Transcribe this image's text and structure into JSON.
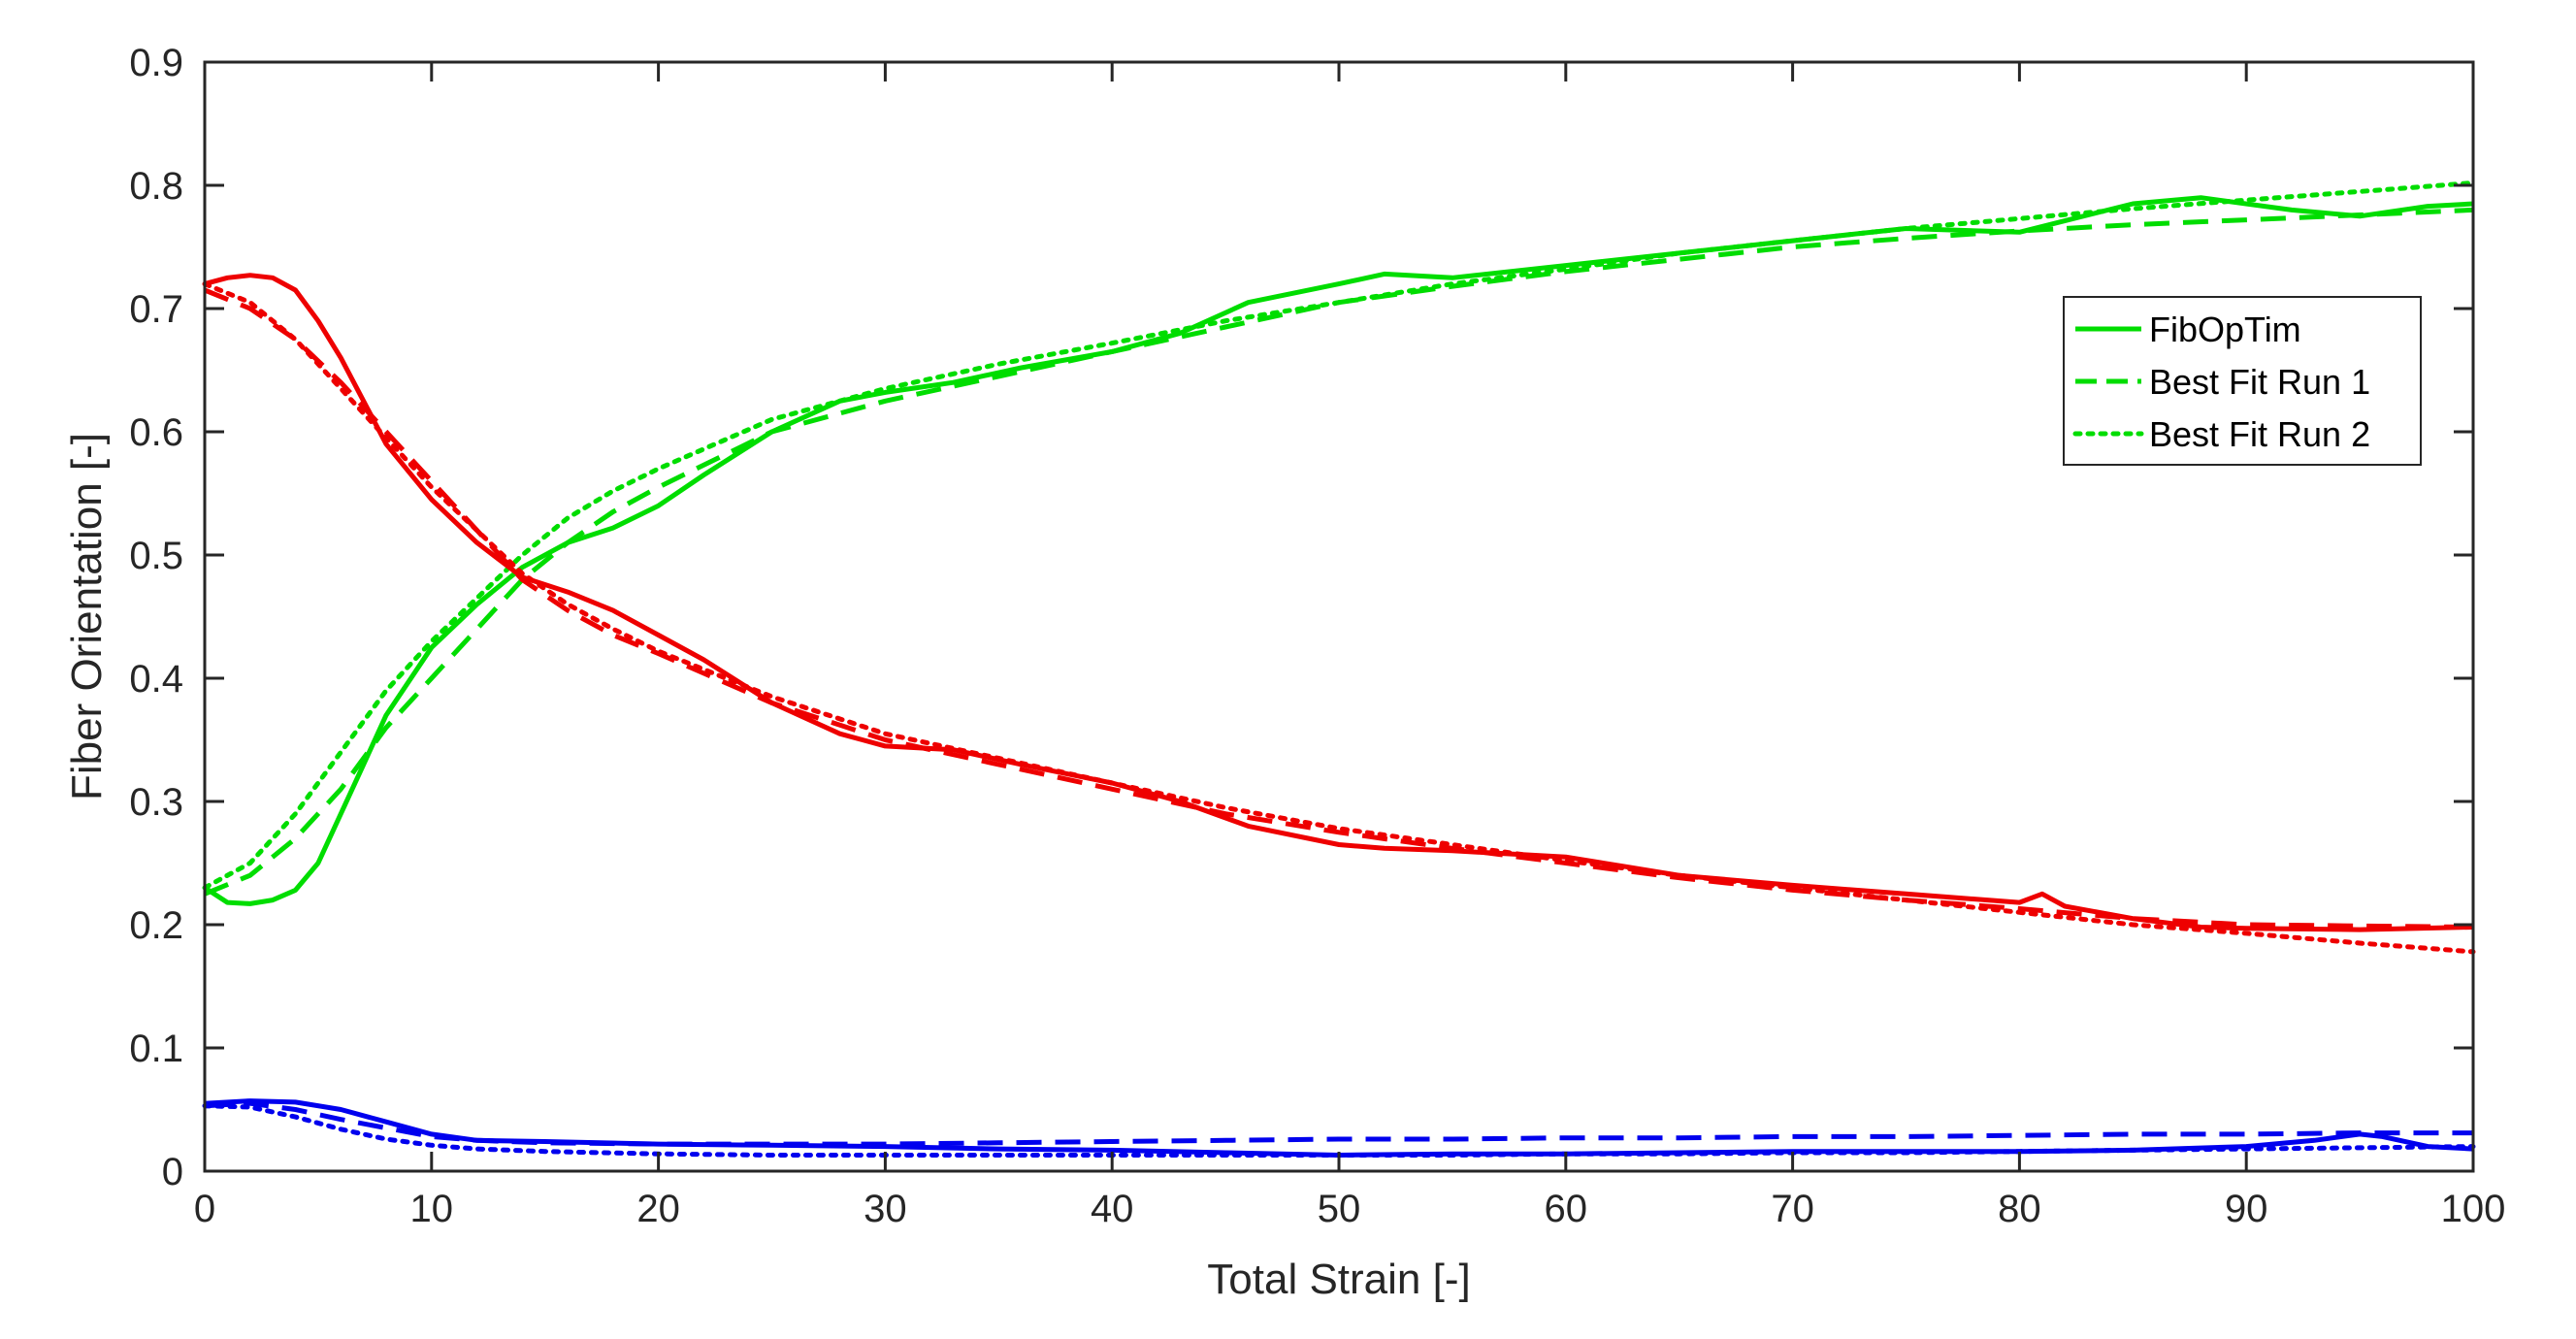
{
  "chart_data": {
    "type": "line",
    "xlabel": "Total Strain [-]",
    "ylabel": "Fiber Orientation [-]",
    "xlim": [
      0,
      100
    ],
    "ylim": [
      0,
      0.9
    ],
    "xticks": [
      0,
      10,
      20,
      30,
      40,
      50,
      60,
      70,
      80,
      90,
      100
    ],
    "yticks": [
      0,
      0.1,
      0.2,
      0.3,
      0.4,
      0.5,
      0.6,
      0.7,
      0.8,
      0.9
    ],
    "xtick_labels": [
      "0",
      "10",
      "20",
      "30",
      "40",
      "50",
      "60",
      "70",
      "80",
      "90",
      "100"
    ],
    "ytick_labels": [
      "0",
      "0.1",
      "0.2",
      "0.3",
      "0.4",
      "0.5",
      "0.6",
      "0.7",
      "0.8",
      "0.9"
    ],
    "grid": false,
    "legend_position": "upper-right",
    "legend": [
      {
        "label": "FibOpTim",
        "style": "solid",
        "color": "#00dd00"
      },
      {
        "label": "Best Fit Run 1",
        "style": "dashed",
        "color": "#00dd00"
      },
      {
        "label": "Best Fit Run 2",
        "style": "dotted",
        "color": "#00dd00"
      }
    ],
    "series": [
      {
        "component": "green",
        "style": "solid",
        "color": "#00dd00",
        "x": [
          0,
          1,
          2,
          3,
          4,
          5,
          6,
          7,
          8,
          10,
          12,
          14,
          16,
          18,
          20,
          22,
          25,
          28,
          30,
          33,
          36,
          40,
          43,
          46,
          50,
          52,
          55,
          60,
          65,
          70,
          75,
          80,
          85,
          88,
          92,
          95,
          98,
          100
        ],
        "y": [
          0.23,
          0.218,
          0.217,
          0.22,
          0.228,
          0.25,
          0.29,
          0.33,
          0.37,
          0.425,
          0.46,
          0.49,
          0.51,
          0.522,
          0.54,
          0.565,
          0.6,
          0.625,
          0.632,
          0.64,
          0.652,
          0.665,
          0.68,
          0.705,
          0.72,
          0.728,
          0.725,
          0.735,
          0.745,
          0.755,
          0.765,
          0.762,
          0.785,
          0.79,
          0.78,
          0.775,
          0.783,
          0.785
        ]
      },
      {
        "component": "green",
        "style": "dashed",
        "color": "#00dd00",
        "x": [
          0,
          2,
          4,
          6,
          8,
          10,
          12,
          14,
          16,
          18,
          20,
          25,
          30,
          35,
          40,
          45,
          50,
          55,
          60,
          65,
          70,
          75,
          80,
          85,
          90,
          95,
          100
        ],
        "y": [
          0.225,
          0.24,
          0.27,
          0.31,
          0.36,
          0.4,
          0.44,
          0.48,
          0.51,
          0.535,
          0.555,
          0.6,
          0.625,
          0.645,
          0.665,
          0.685,
          0.705,
          0.718,
          0.73,
          0.74,
          0.75,
          0.757,
          0.763,
          0.768,
          0.772,
          0.776,
          0.78
        ]
      },
      {
        "component": "green",
        "style": "dotted",
        "color": "#00dd00",
        "x": [
          0,
          2,
          4,
          6,
          8,
          10,
          12,
          14,
          16,
          18,
          20,
          25,
          30,
          35,
          40,
          45,
          50,
          55,
          60,
          65,
          70,
          75,
          80,
          85,
          90,
          95,
          100
        ],
        "y": [
          0.23,
          0.25,
          0.29,
          0.34,
          0.39,
          0.43,
          0.465,
          0.5,
          0.53,
          0.552,
          0.57,
          0.61,
          0.635,
          0.655,
          0.672,
          0.69,
          0.705,
          0.72,
          0.732,
          0.745,
          0.755,
          0.765,
          0.773,
          0.781,
          0.788,
          0.795,
          0.802
        ]
      },
      {
        "component": "red",
        "style": "solid",
        "color": "#ee0000",
        "x": [
          0,
          1,
          2,
          3,
          4,
          5,
          6,
          7,
          8,
          10,
          12,
          14,
          16,
          18,
          20,
          22,
          25,
          28,
          30,
          33,
          36,
          40,
          43,
          46,
          50,
          52,
          55,
          60,
          65,
          70,
          75,
          80,
          81,
          82,
          85,
          88,
          90,
          95,
          100
        ],
        "y": [
          0.72,
          0.725,
          0.727,
          0.725,
          0.715,
          0.69,
          0.66,
          0.625,
          0.59,
          0.545,
          0.51,
          0.482,
          0.47,
          0.455,
          0.435,
          0.415,
          0.38,
          0.355,
          0.345,
          0.342,
          0.33,
          0.315,
          0.3,
          0.28,
          0.265,
          0.262,
          0.26,
          0.255,
          0.24,
          0.232,
          0.225,
          0.218,
          0.225,
          0.215,
          0.205,
          0.198,
          0.197,
          0.196,
          0.198
        ]
      },
      {
        "component": "red",
        "style": "dashed",
        "color": "#ee0000",
        "x": [
          0,
          2,
          4,
          6,
          8,
          10,
          12,
          14,
          16,
          18,
          20,
          25,
          30,
          35,
          40,
          45,
          50,
          55,
          60,
          65,
          70,
          75,
          80,
          85,
          90,
          95,
          100
        ],
        "y": [
          0.715,
          0.7,
          0.675,
          0.64,
          0.6,
          0.56,
          0.52,
          0.48,
          0.455,
          0.435,
          0.42,
          0.38,
          0.35,
          0.33,
          0.31,
          0.29,
          0.275,
          0.262,
          0.25,
          0.238,
          0.228,
          0.22,
          0.213,
          0.205,
          0.2,
          0.199,
          0.198
        ]
      },
      {
        "component": "red",
        "style": "dotted",
        "color": "#ee0000",
        "x": [
          0,
          2,
          4,
          6,
          8,
          10,
          12,
          14,
          16,
          18,
          20,
          25,
          30,
          35,
          40,
          45,
          50,
          55,
          60,
          65,
          70,
          75,
          80,
          85,
          90,
          95,
          100
        ],
        "y": [
          0.72,
          0.705,
          0.675,
          0.635,
          0.595,
          0.555,
          0.52,
          0.485,
          0.46,
          0.44,
          0.422,
          0.385,
          0.355,
          0.335,
          0.315,
          0.295,
          0.278,
          0.265,
          0.252,
          0.24,
          0.23,
          0.22,
          0.21,
          0.2,
          0.193,
          0.185,
          0.178
        ]
      },
      {
        "component": "blue",
        "style": "solid",
        "color": "#0000ee",
        "x": [
          0,
          2,
          4,
          6,
          8,
          10,
          12,
          15,
          20,
          25,
          30,
          35,
          40,
          45,
          50,
          55,
          60,
          65,
          70,
          75,
          80,
          85,
          90,
          93,
          95,
          96,
          98,
          100
        ],
        "y": [
          0.055,
          0.057,
          0.056,
          0.05,
          0.04,
          0.03,
          0.025,
          0.024,
          0.022,
          0.021,
          0.02,
          0.018,
          0.017,
          0.015,
          0.013,
          0.014,
          0.014,
          0.015,
          0.016,
          0.016,
          0.016,
          0.017,
          0.02,
          0.025,
          0.03,
          0.028,
          0.02,
          0.018
        ]
      },
      {
        "component": "blue",
        "style": "dashed",
        "color": "#0000ee",
        "x": [
          0,
          2,
          4,
          6,
          8,
          10,
          12,
          15,
          20,
          25,
          30,
          35,
          40,
          45,
          50,
          55,
          60,
          65,
          70,
          75,
          80,
          85,
          90,
          95,
          100
        ],
        "y": [
          0.053,
          0.055,
          0.05,
          0.042,
          0.035,
          0.028,
          0.025,
          0.023,
          0.022,
          0.022,
          0.022,
          0.023,
          0.024,
          0.025,
          0.026,
          0.026,
          0.027,
          0.027,
          0.028,
          0.028,
          0.029,
          0.03,
          0.03,
          0.031,
          0.031
        ]
      },
      {
        "component": "blue",
        "style": "dotted",
        "color": "#0000ee",
        "x": [
          0,
          2,
          4,
          6,
          8,
          10,
          12,
          15,
          20,
          25,
          30,
          35,
          40,
          45,
          50,
          55,
          60,
          65,
          70,
          75,
          80,
          85,
          90,
          95,
          100
        ],
        "y": [
          0.053,
          0.052,
          0.044,
          0.034,
          0.026,
          0.021,
          0.018,
          0.016,
          0.014,
          0.013,
          0.013,
          0.013,
          0.013,
          0.013,
          0.013,
          0.013,
          0.014,
          0.014,
          0.015,
          0.015,
          0.016,
          0.017,
          0.018,
          0.019,
          0.02
        ]
      }
    ]
  }
}
